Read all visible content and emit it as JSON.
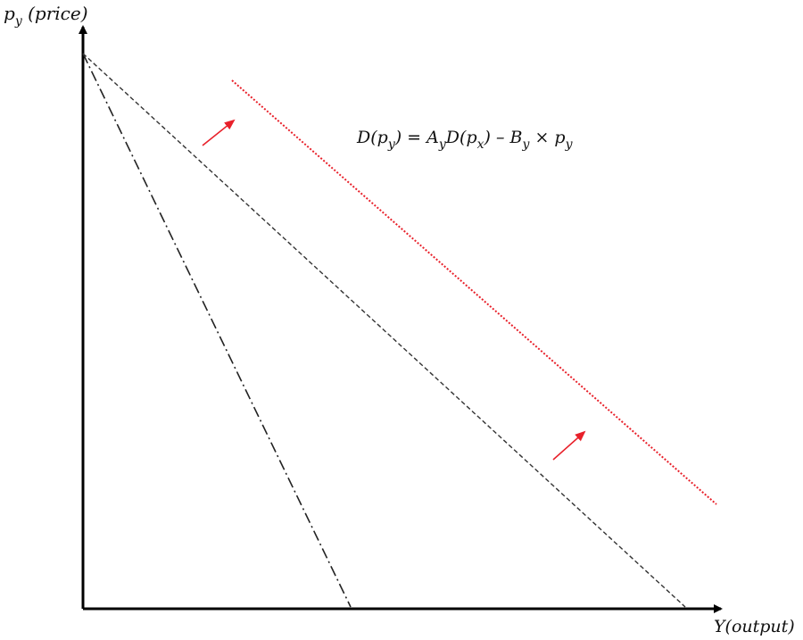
{
  "axes": {
    "y_label": {
      "var": "p",
      "sub": "y",
      "rest": " (price)"
    },
    "x_label": "Y(output)"
  },
  "equation": {
    "parts": [
      "D(p",
      "y",
      ") = A",
      "y",
      "D(p",
      "x",
      ") – B",
      "y",
      " × p",
      "y"
    ]
  },
  "curves": [
    {
      "name": "steep-demand",
      "style": "dash-dot",
      "color": "#222222"
    },
    {
      "name": "original-demand",
      "style": "dashed",
      "color": "#333333"
    },
    {
      "name": "shifted-demand",
      "style": "dotted",
      "color": "#e8202a"
    }
  ],
  "shift_arrows": {
    "color": "#e8202a",
    "count": 2
  }
}
